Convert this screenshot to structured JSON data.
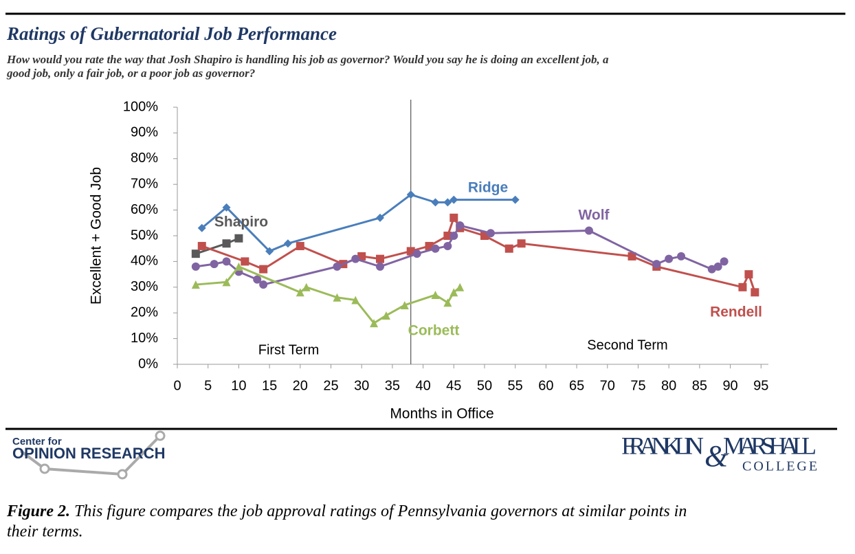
{
  "chart_data": {
    "type": "line",
    "title": "Ratings of Gubernatorial Job Performance",
    "subtitle": [
      "How would you rate the way that Josh Shapiro is handling his job as governor? Would you say he is doing an excellent job, a",
      "good job, only a fair job, or a poor job as governor?"
    ],
    "x_label": "Months in Office",
    "y_label": "Excellent + Good Job",
    "xlim": [
      0,
      96.2
    ],
    "xticks": [
      0,
      5,
      10,
      15,
      20,
      25,
      30,
      35,
      40,
      45,
      50,
      55,
      60,
      65,
      70,
      75,
      80,
      85,
      90,
      95
    ],
    "ylim": [
      0,
      100
    ],
    "yticks": [
      {
        "value": 0,
        "label": "0%"
      },
      {
        "value": 10,
        "label": "10%"
      },
      {
        "value": 20,
        "label": "20%"
      },
      {
        "value": 30,
        "label": "30%"
      },
      {
        "value": 40,
        "label": "40%"
      },
      {
        "value": 50,
        "label": "50%"
      },
      {
        "value": 60,
        "label": "60%"
      },
      {
        "value": 70,
        "label": "70%"
      },
      {
        "value": 80,
        "label": "80%"
      },
      {
        "value": 90,
        "label": "90%"
      },
      {
        "value": 100,
        "label": "100%"
      }
    ],
    "term_divider": 38,
    "annotations": [
      "First Term",
      "Second Term"
    ],
    "series": [
      {
        "name": "Ridge",
        "color": "#4a7ebb",
        "marker": "diamond",
        "x": [
          4,
          8,
          15,
          18,
          33,
          38,
          42,
          44,
          45,
          55
        ],
        "values": [
          53,
          61,
          44,
          47,
          57,
          66,
          63,
          63,
          64,
          64
        ]
      },
      {
        "name": "Shapiro",
        "color": "#595959",
        "marker": "square",
        "x": [
          3,
          8,
          10
        ],
        "values": [
          43,
          47,
          49
        ]
      },
      {
        "name": "Rendell",
        "color": "#c0504d",
        "marker": "square",
        "x": [
          4,
          11,
          14,
          20,
          27,
          30,
          33,
          38,
          41,
          44,
          45,
          46,
          50,
          54,
          56,
          74,
          78,
          92,
          93,
          94
        ],
        "values": [
          46,
          40,
          37,
          46,
          39,
          42,
          41,
          44,
          46,
          50,
          57,
          53,
          50,
          45,
          47,
          42,
          38,
          30,
          35,
          28
        ]
      },
      {
        "name": "Wolf",
        "color": "#8064a2",
        "marker": "circle",
        "x": [
          3,
          6,
          8,
          10,
          13,
          14,
          26,
          29,
          33,
          39,
          42,
          44,
          45,
          46,
          51,
          67,
          78,
          80,
          82,
          87,
          88,
          89
        ],
        "values": [
          38,
          39,
          40,
          36,
          33,
          31,
          38,
          41,
          38,
          43,
          45,
          46,
          50,
          54,
          51,
          52,
          39,
          41,
          42,
          37,
          38,
          40
        ]
      },
      {
        "name": "Corbett",
        "color": "#9bbb59",
        "marker": "triangle",
        "x": [
          3,
          8,
          10,
          20,
          21,
          26,
          29,
          32,
          34,
          37,
          42,
          44,
          45,
          46
        ],
        "values": [
          31,
          32,
          38,
          28,
          30,
          26,
          25,
          16,
          19,
          23,
          27,
          24,
          28,
          30
        ]
      }
    ]
  },
  "footer": {
    "left_logo": [
      "Center for",
      "OPINION RESEARCH"
    ],
    "right_logo": [
      "FRANKLIN",
      "&",
      "MARSHALL",
      "COLLEGE"
    ]
  },
  "caption": {
    "label": "Figure 2.",
    "text": "This figure compares the job approval ratings of Pennsylvania governors at similar points in",
    "text2": "their terms."
  }
}
